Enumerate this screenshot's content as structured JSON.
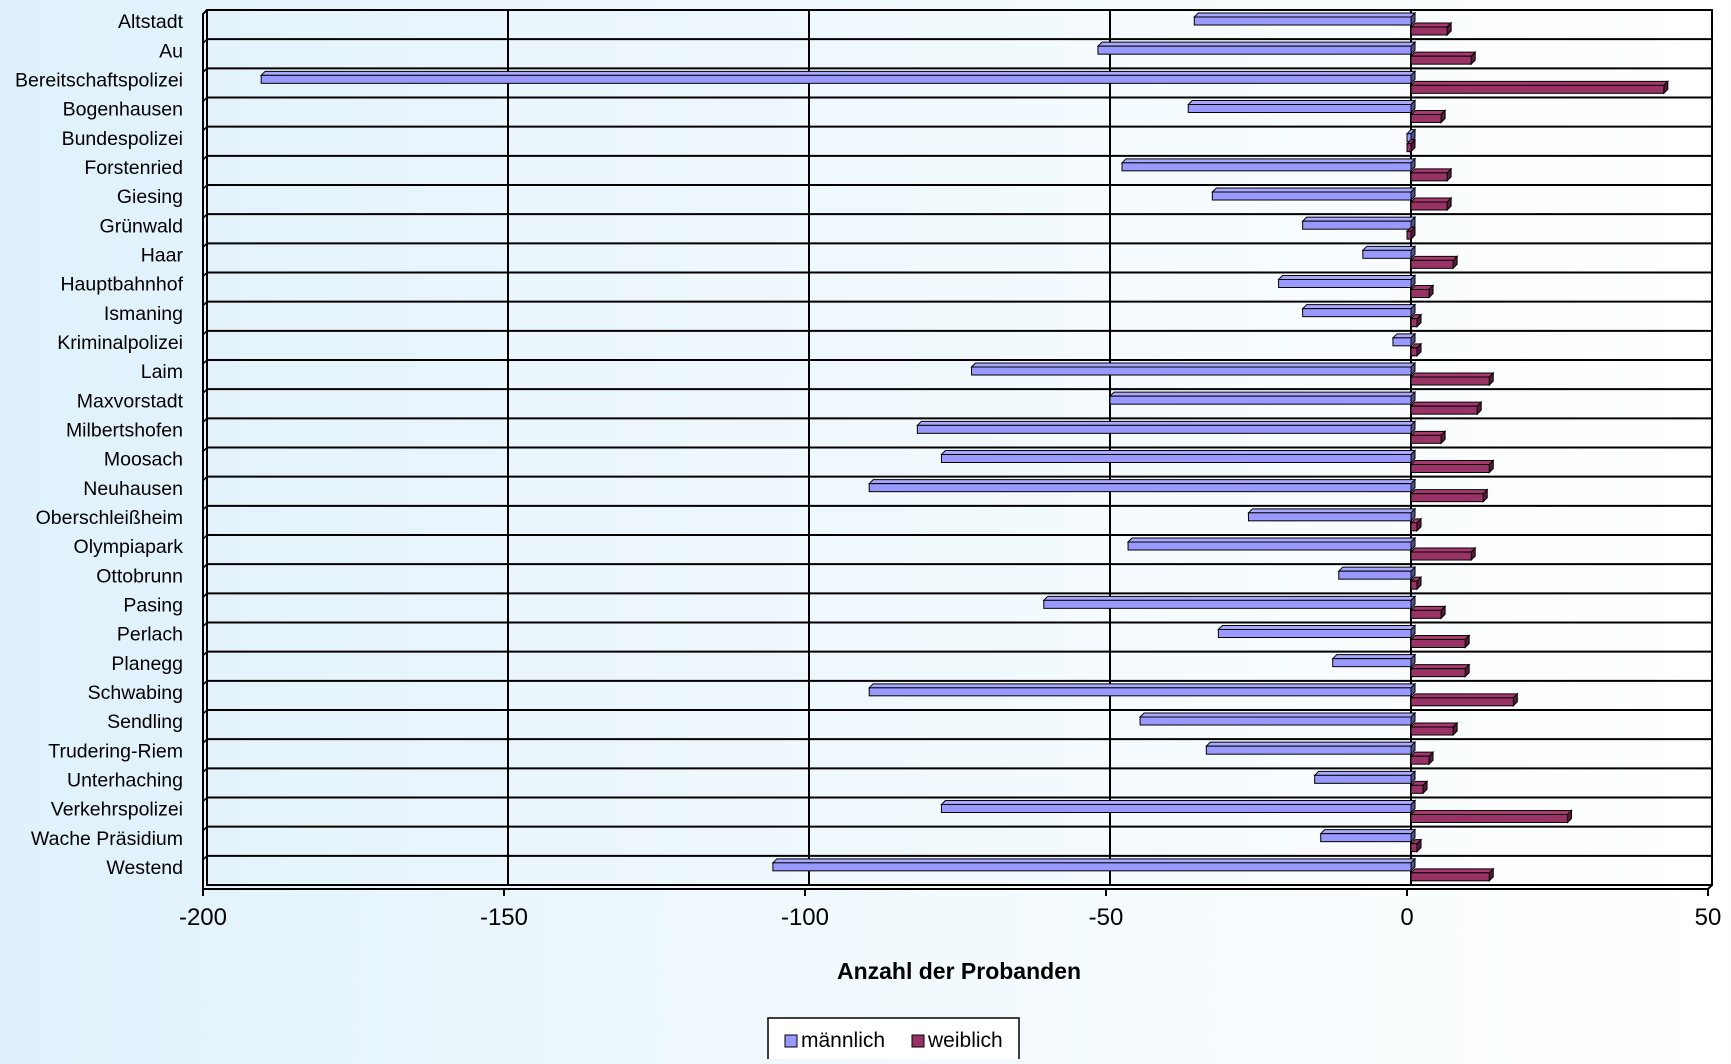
{
  "chart_data": {
    "type": "bar",
    "orientation": "horizontal",
    "categories": [
      "Altstadt",
      "Au",
      "Bereitschaftspolizei",
      "Bogenhausen",
      "Bundespolizei",
      "Forstenried",
      "Giesing",
      "Grünwald",
      "Haar",
      "Hauptbahnhof",
      "Ismaning",
      "Kriminalpolizei",
      "Laim",
      "Maxvorstadt",
      "Milbertshofen",
      "Moosach",
      "Neuhausen",
      "Oberschleißheim",
      "Olympiapark",
      "Ottobrunn",
      "Pasing",
      "Perlach",
      "Planegg",
      "Schwabing",
      "Sendling",
      "Trudering-Riem",
      "Unterhaching",
      "Verkehrspolizei",
      "Wache Präsidium",
      "Westend"
    ],
    "series": [
      {
        "name": "männlich",
        "color": "#9999ff",
        "values": [
          -36,
          -52,
          -191,
          -37,
          0,
          -48,
          -33,
          -18,
          -8,
          -22,
          -18,
          -3,
          -73,
          -50,
          -82,
          -78,
          -90,
          -27,
          -47,
          -12,
          -61,
          -32,
          -13,
          -90,
          -45,
          -34,
          -16,
          -78,
          -15,
          -106
        ]
      },
      {
        "name": "weiblich",
        "color": "#993366",
        "values": [
          6,
          10,
          42,
          5,
          0,
          6,
          6,
          0,
          7,
          3,
          1,
          1,
          13,
          11,
          5,
          13,
          12,
          1,
          10,
          1,
          5,
          9,
          9,
          17,
          7,
          3,
          2,
          26,
          1,
          13
        ]
      }
    ],
    "xlabel": "Anzahl der Probanden",
    "ylabel": "",
    "xlim": [
      -200,
      50
    ],
    "xticks": [
      -200,
      -150,
      -100,
      -50,
      0,
      50
    ],
    "grid": true,
    "legend": "bottom-center"
  }
}
